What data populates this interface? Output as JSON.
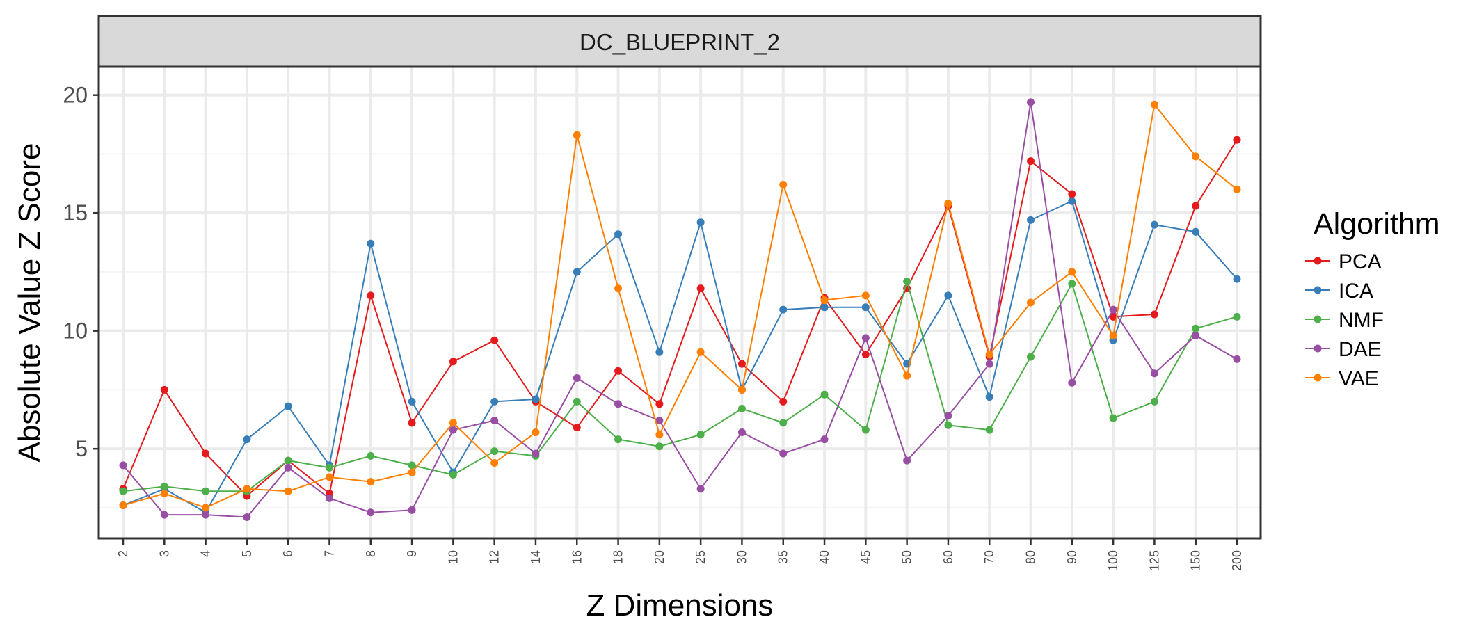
{
  "chart_data": {
    "type": "line",
    "title": "DC_BLUEPRINT_2",
    "xlabel": "Z Dimensions",
    "ylabel": "Absolute Value Z Score",
    "legend_title": "Algorithm",
    "legend_position": "right",
    "grid": true,
    "ylim": [
      1.2,
      21.2
    ],
    "yticks": [
      5,
      10,
      15,
      20
    ],
    "categories": [
      "2",
      "3",
      "4",
      "5",
      "6",
      "7",
      "8",
      "9",
      "10",
      "12",
      "14",
      "16",
      "18",
      "20",
      "25",
      "30",
      "35",
      "40",
      "45",
      "50",
      "60",
      "70",
      "80",
      "90",
      "100",
      "125",
      "150",
      "200"
    ],
    "series": [
      {
        "name": "PCA",
        "color": "#e41a1c",
        "values": [
          3.3,
          7.5,
          4.8,
          3.0,
          4.5,
          3.1,
          11.5,
          6.1,
          8.7,
          9.6,
          7.0,
          5.9,
          8.3,
          6.9,
          11.8,
          8.6,
          7.0,
          11.4,
          9.0,
          11.8,
          15.3,
          8.9,
          17.2,
          15.8,
          10.6,
          10.7,
          15.3,
          18.1
        ]
      },
      {
        "name": "ICA",
        "color": "#377eb8",
        "values": [
          2.6,
          3.3,
          2.3,
          5.4,
          6.8,
          4.3,
          13.7,
          7.0,
          4.0,
          7.0,
          7.1,
          12.5,
          14.1,
          9.1,
          14.6,
          7.5,
          10.9,
          11.0,
          11.0,
          8.6,
          11.5,
          7.2,
          14.7,
          15.5,
          9.6,
          14.5,
          14.2,
          12.2
        ]
      },
      {
        "name": "NMF",
        "color": "#4daf4a",
        "values": [
          3.2,
          3.4,
          3.2,
          3.2,
          4.5,
          4.2,
          4.7,
          4.3,
          3.9,
          4.9,
          4.7,
          7.0,
          5.4,
          5.1,
          5.6,
          6.7,
          6.1,
          7.3,
          5.8,
          12.1,
          6.0,
          5.8,
          8.9,
          12.0,
          6.3,
          7.0,
          10.1,
          10.6
        ]
      },
      {
        "name": "DAE",
        "color": "#984ea3",
        "values": [
          4.3,
          2.2,
          2.2,
          2.1,
          4.2,
          2.9,
          2.3,
          2.4,
          5.8,
          6.2,
          4.8,
          8.0,
          6.9,
          6.2,
          3.3,
          5.7,
          4.8,
          5.4,
          9.7,
          4.5,
          6.4,
          8.6,
          19.7,
          7.8,
          10.9,
          8.2,
          9.8,
          8.8
        ]
      },
      {
        "name": "VAE",
        "color": "#ff7f00",
        "values": [
          2.6,
          3.1,
          2.5,
          3.3,
          3.2,
          3.8,
          3.6,
          4.0,
          6.1,
          4.4,
          5.7,
          18.3,
          11.8,
          5.6,
          9.1,
          7.5,
          16.2,
          11.3,
          11.5,
          8.1,
          15.4,
          9.0,
          11.2,
          12.5,
          9.8,
          19.6,
          17.4,
          16.0
        ]
      }
    ]
  },
  "colors": {
    "strip_background": "#d9d9d9",
    "panel_border": "#333333",
    "grid_major": "#ebebeb",
    "grid_minor": "#f4f4f4"
  }
}
